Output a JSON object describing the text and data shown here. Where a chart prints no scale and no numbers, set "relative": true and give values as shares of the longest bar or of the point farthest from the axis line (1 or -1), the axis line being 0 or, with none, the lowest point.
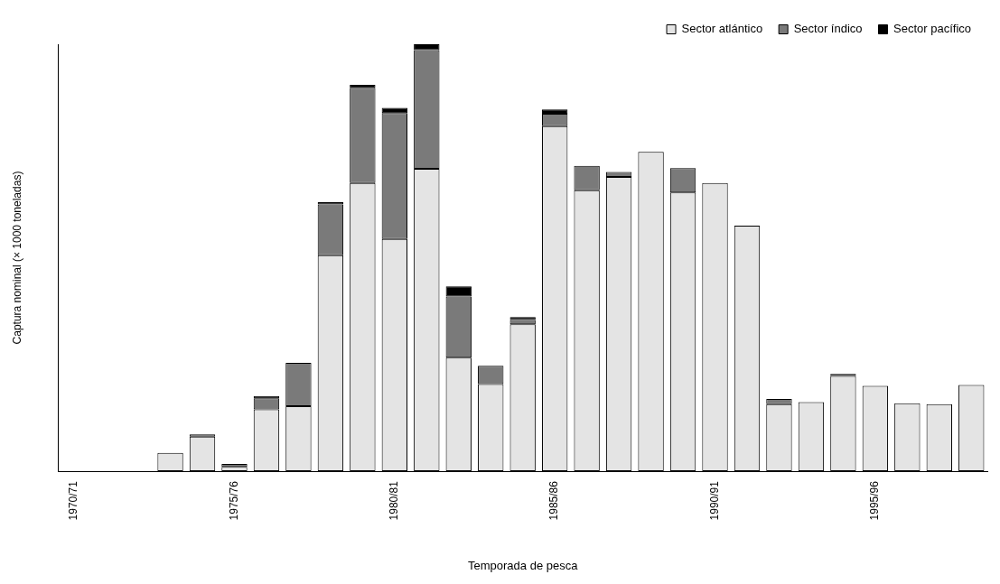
{
  "chart_data": {
    "type": "bar",
    "stacked": true,
    "relative": true,
    "xlabel": "Temporada de pesca",
    "ylabel": "Captura nominal (× 1000 toneladas)",
    "legend": "top right",
    "categories": [
      "1970/71",
      null,
      null,
      null,
      null,
      "1975/76",
      null,
      null,
      null,
      null,
      "1980/81",
      null,
      null,
      null,
      null,
      "1985/86",
      null,
      null,
      null,
      null,
      "1990/91",
      null,
      null,
      null,
      null,
      "1995/96",
      null,
      null,
      null
    ],
    "series": [
      {
        "name": "Sector atlántico",
        "color": "#e4e4e4",
        "values": [
          0,
          0,
          0,
          0.043,
          0.081,
          0.01,
          0.145,
          0.152,
          0.506,
          0.675,
          0.544,
          0.708,
          0.266,
          0.204,
          0.344,
          0.808,
          0.658,
          0.689,
          0.748,
          0.653,
          0.675,
          0.575,
          0.157,
          0.162,
          0.223,
          0.2,
          0.159,
          0.157,
          0.202
        ]
      },
      {
        "name": "Sector índico",
        "color": "#7a7a7a",
        "values": [
          0,
          0,
          0,
          0,
          0.005,
          0.007,
          0.026,
          0.102,
          0.119,
          0.223,
          0.295,
          0.278,
          0.143,
          0.043,
          0.01,
          0.029,
          0.057,
          0.012,
          0,
          0.057,
          null,
          0,
          0.012,
          0,
          0.005,
          0,
          0,
          0,
          0
        ]
      },
      {
        "name": "Sector pacífico",
        "color": "#000000",
        "values": [
          0,
          0,
          0,
          0,
          0,
          0,
          0.005,
          0,
          0.005,
          0.007,
          0.012,
          0.014,
          0.024,
          0,
          0.007,
          0.01,
          0,
          0,
          0,
          0,
          0,
          0,
          0,
          0,
          0,
          0,
          0,
          0,
          0
        ]
      }
    ]
  }
}
